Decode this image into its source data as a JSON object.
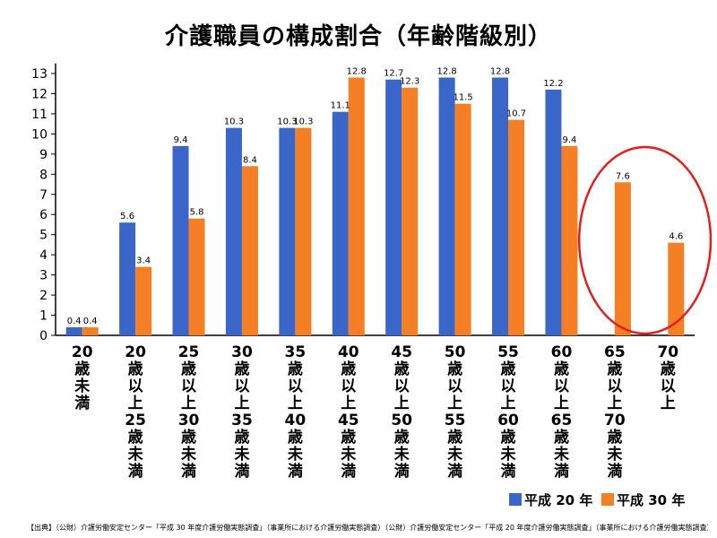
{
  "chart_data": {
    "type": "bar",
    "title": "介護職員の構成割合（年齢階級別）",
    "categories": [
      "20歳未満",
      "20歳以上25歳未満",
      "25歳以上30歳未満",
      "30歳以上35歳未満",
      "35歳以上40歳未満",
      "40歳以上45歳未満",
      "45歳以上50歳未満",
      "50歳以上55歳未満",
      "55歳以上60歳未満",
      "60歳以上65歳未満",
      "65歳以上70歳未満",
      "70歳以上"
    ],
    "series": [
      {
        "name": "平成 20 年",
        "color": "#3a66c9",
        "values": [
          0.4,
          5.6,
          9.4,
          10.3,
          10.3,
          11.1,
          12.7,
          12.8,
          12.8,
          12.2,
          null,
          null
        ]
      },
      {
        "name": "平成 30 年",
        "color": "#f57f24",
        "values": [
          0.4,
          3.4,
          5.8,
          8.4,
          10.3,
          12.8,
          12.3,
          11.5,
          10.7,
          9.4,
          7.6,
          4.6
        ]
      }
    ],
    "ylim": [
      0,
      13.5
    ],
    "yticks": [
      0,
      1,
      2,
      3,
      4,
      5,
      6,
      7,
      8,
      9,
      10,
      11,
      12,
      13
    ],
    "xlabel": "",
    "ylabel": "",
    "grid": false,
    "legend_position": "bottom-right",
    "highlight": {
      "shape": "ellipse",
      "color": "#e41e1e",
      "categories": [
        "65歳以上70歳未満",
        "70歳以上"
      ]
    }
  },
  "source_note": "【出典】（公財）介護労働安定センター「平成 30 年度介護労働実態調査」（事業所における介護労働実態調査）（公財）介護労働安定センター「平成 20 年度介護労働実態調査」（事業所における介護労働実態調査）"
}
